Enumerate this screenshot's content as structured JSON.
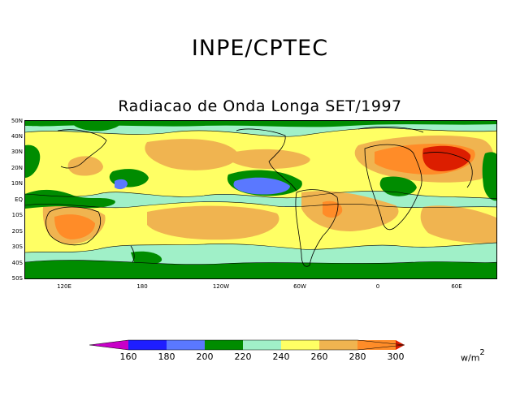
{
  "header": {
    "title": "INPE/CPTEC",
    "subtitle": "Radiacao de Onda Longa SET/1997"
  },
  "axes": {
    "lat_labels": [
      "50N",
      "40N",
      "30N",
      "20N",
      "10N",
      "EQ",
      "10S",
      "20S",
      "30S",
      "40S",
      "50S"
    ],
    "lon_labels": [
      "120E",
      "180",
      "120W",
      "60W",
      "0",
      "60E"
    ]
  },
  "colorbar": {
    "levels": [
      "160",
      "180",
      "200",
      "220",
      "240",
      "260",
      "280",
      "300"
    ],
    "colors": {
      "lt160": "#c800c8",
      "b160_180": "#1e1eff",
      "b180_200": "#5a78ff",
      "b200_220": "#008c00",
      "b220_240": "#a0f0c8",
      "b240_260": "#ffff64",
      "b260_280": "#f0b450",
      "b280_300": "#ff8c28",
      "gt300": "#dc1e00"
    },
    "unit": "w/m",
    "unit_exp": "2"
  }
}
